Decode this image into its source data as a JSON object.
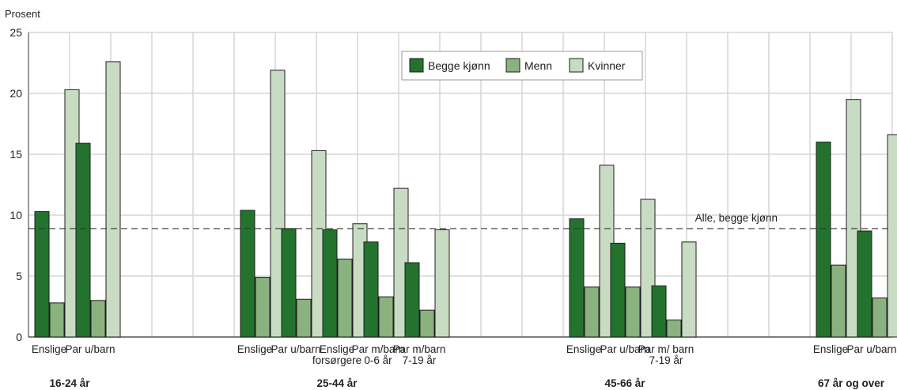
{
  "chart_data": {
    "type": "bar",
    "ylabel": "Prosent",
    "ylim": [
      0,
      25
    ],
    "yticks": [
      0,
      5,
      10,
      15,
      20,
      25
    ],
    "grid": true,
    "legend_position": "top-center",
    "series": [
      {
        "name": "Begge kjønn",
        "color": "#23732f"
      },
      {
        "name": "Menn",
        "color": "#89b27f"
      },
      {
        "name": "Kvinner",
        "color": "#c8dcc4"
      }
    ],
    "groups": [
      {
        "label": "16-24 år",
        "categories": [
          {
            "label": [
              "Enslige"
            ],
            "values": [
              10.3,
              2.8,
              20.3
            ]
          },
          {
            "label": [
              "Par u/barn"
            ],
            "values": [
              15.9,
              3.0,
              22.6
            ]
          }
        ]
      },
      {
        "label": "25-44 år",
        "categories": [
          {
            "label": [
              "Enslige"
            ],
            "values": [
              10.4,
              4.9,
              21.9
            ]
          },
          {
            "label": [
              "Par u/barn"
            ],
            "values": [
              8.9,
              3.1,
              15.3
            ]
          },
          {
            "label": [
              "Enslige",
              "forsørgere"
            ],
            "values": [
              8.8,
              6.4,
              9.3
            ]
          },
          {
            "label": [
              "Par m/barn",
              "0-6 år"
            ],
            "values": [
              7.8,
              3.3,
              12.2
            ]
          },
          {
            "label": [
              "Par m/barn",
              "7-19 år"
            ],
            "values": [
              6.1,
              2.2,
              8.8
            ]
          }
        ]
      },
      {
        "label": "45-66 år",
        "categories": [
          {
            "label": [
              "Enslige"
            ],
            "values": [
              9.7,
              4.1,
              14.1
            ]
          },
          {
            "label": [
              "Par u/barn"
            ],
            "values": [
              7.7,
              4.1,
              11.3
            ]
          },
          {
            "label": [
              "Par m/ barn",
              "7-19 år"
            ],
            "values": [
              4.2,
              1.4,
              7.8
            ]
          }
        ]
      },
      {
        "label": "67 år og over",
        "categories": [
          {
            "label": [
              "Enslige"
            ],
            "values": [
              16.0,
              5.9,
              19.5
            ]
          },
          {
            "label": [
              "Par u/barn"
            ],
            "values": [
              8.7,
              3.2,
              16.6
            ]
          }
        ]
      }
    ],
    "reference_line": {
      "label": "Alle, begge kjønn",
      "value": 8.9
    }
  }
}
